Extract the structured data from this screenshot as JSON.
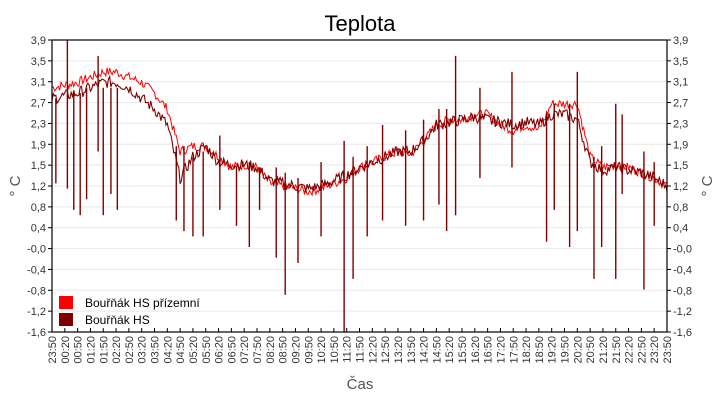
{
  "chart_data": {
    "type": "line",
    "title": "Teplota",
    "xlabel": "Čas",
    "ylabel": "° C",
    "ylabel_right": "° C",
    "ylim": [
      -1.6,
      3.9
    ],
    "y_ticks": [
      "3,9",
      "3,5",
      "3,1",
      "2,7",
      "2,3",
      "1,9",
      "1,5",
      "1,2",
      "0,8",
      "0,4",
      "-0,0",
      "-0,4",
      "-0,8",
      "-1,2",
      "-1,6"
    ],
    "y_tick_values": [
      3.9,
      3.5,
      3.1,
      2.7,
      2.3,
      1.9,
      1.5,
      1.2,
      0.8,
      0.4,
      0.0,
      -0.4,
      -0.8,
      -1.2,
      -1.6
    ],
    "grid": true,
    "legend_position": "lower-left inside",
    "x": [
      "23:50",
      "00:20",
      "00:50",
      "01:20",
      "01:50",
      "02:20",
      "02:50",
      "03:20",
      "03:50",
      "04:20",
      "04:50",
      "05:20",
      "05:50",
      "06:20",
      "06:50",
      "07:20",
      "07:50",
      "08:20",
      "08:50",
      "09:20",
      "09:50",
      "10:20",
      "10:50",
      "11:20",
      "11:50",
      "12:20",
      "12:50",
      "13:20",
      "13:50",
      "14:20",
      "14:50",
      "15:20",
      "15:50",
      "16:20",
      "16:50",
      "17:20",
      "17:50",
      "18:20",
      "18:50",
      "19:20",
      "19:50",
      "20:20",
      "20:50",
      "21:20",
      "21:50",
      "22:20",
      "22:50",
      "23:20",
      "23:50"
    ],
    "series": [
      {
        "name": "Bouřňák HS přízemní",
        "color": "#ff0000",
        "values": [
          3.0,
          3.05,
          3.1,
          3.2,
          3.3,
          3.3,
          3.2,
          3.1,
          2.9,
          2.6,
          1.8,
          1.9,
          1.9,
          1.7,
          1.5,
          1.55,
          1.5,
          1.2,
          1.15,
          1.1,
          1.05,
          1.1,
          1.2,
          1.3,
          1.5,
          1.6,
          1.7,
          1.8,
          1.75,
          2.0,
          2.3,
          2.4,
          2.4,
          2.5,
          2.5,
          2.3,
          2.2,
          2.3,
          2.2,
          2.7,
          2.7,
          2.7,
          1.7,
          1.5,
          1.55,
          1.5,
          1.4,
          1.3,
          1.15
        ]
      },
      {
        "name": "Bouřňák HS",
        "color": "#800000",
        "values": [
          2.8,
          2.85,
          2.9,
          3.0,
          3.1,
          3.1,
          3.0,
          2.8,
          2.6,
          2.3,
          1.3,
          1.7,
          1.9,
          1.6,
          1.55,
          1.55,
          1.5,
          1.25,
          1.2,
          1.15,
          1.1,
          1.15,
          1.25,
          1.35,
          1.5,
          1.6,
          1.7,
          1.8,
          1.8,
          2.0,
          2.3,
          2.35,
          2.4,
          2.45,
          2.4,
          2.35,
          2.3,
          2.35,
          2.3,
          2.5,
          2.5,
          2.4,
          1.6,
          1.45,
          1.5,
          1.45,
          1.4,
          1.3,
          1.15
        ]
      }
    ],
    "spikes": [
      {
        "series": 1,
        "x_index": 1.2,
        "low": 1.1,
        "high": 3.9
      },
      {
        "series": 1,
        "x_index": 0.3,
        "low": 1.2,
        "high": 2.8
      },
      {
        "series": 1,
        "x_index": 1.7,
        "low": 0.7,
        "high": 2.9
      },
      {
        "series": 1,
        "x_index": 2.2,
        "low": 0.6,
        "high": 2.9
      },
      {
        "series": 1,
        "x_index": 2.7,
        "low": 0.9,
        "high": 3.0
      },
      {
        "series": 1,
        "x_index": 3.6,
        "low": 1.8,
        "high": 3.6
      },
      {
        "series": 1,
        "x_index": 4.0,
        "low": 0.6,
        "high": 3.0
      },
      {
        "series": 1,
        "x_index": 4.6,
        "low": 1.0,
        "high": 3.0
      },
      {
        "series": 1,
        "x_index": 5.1,
        "low": 0.7,
        "high": 3.0
      },
      {
        "series": 1,
        "x_index": 9.7,
        "low": 0.5,
        "high": 1.9
      },
      {
        "series": 1,
        "x_index": 10.3,
        "low": 0.3,
        "high": 1.9
      },
      {
        "series": 1,
        "x_index": 11.0,
        "low": 0.2,
        "high": 1.7
      },
      {
        "series": 1,
        "x_index": 11.8,
        "low": 0.2,
        "high": 1.8
      },
      {
        "series": 1,
        "x_index": 13.1,
        "low": 0.7,
        "high": 2.1
      },
      {
        "series": 1,
        "x_index": 14.4,
        "low": 0.4,
        "high": 1.5
      },
      {
        "series": 1,
        "x_index": 15.4,
        "low": 0.0,
        "high": 1.6
      },
      {
        "series": 1,
        "x_index": 16.2,
        "low": 0.7,
        "high": 1.5
      },
      {
        "series": 1,
        "x_index": 17.5,
        "low": -0.2,
        "high": 1.5
      },
      {
        "series": 1,
        "x_index": 18.2,
        "low": -0.9,
        "high": 1.4
      },
      {
        "series": 1,
        "x_index": 19.2,
        "low": -0.3,
        "high": 1.3
      },
      {
        "series": 1,
        "x_index": 21.0,
        "low": 0.2,
        "high": 1.6
      },
      {
        "series": 1,
        "x_index": 22.8,
        "low": -1.6,
        "high": 2.0
      },
      {
        "series": 1,
        "x_index": 23.5,
        "low": -0.6,
        "high": 1.7
      },
      {
        "series": 1,
        "x_index": 24.6,
        "low": 0.2,
        "high": 1.9
      },
      {
        "series": 1,
        "x_index": 25.8,
        "low": 0.5,
        "high": 2.3
      },
      {
        "series": 1,
        "x_index": 27.6,
        "low": 0.4,
        "high": 2.2
      },
      {
        "series": 1,
        "x_index": 29.0,
        "low": 0.5,
        "high": 2.4
      },
      {
        "series": 1,
        "x_index": 30.2,
        "low": 0.8,
        "high": 2.6
      },
      {
        "series": 1,
        "x_index": 30.8,
        "low": 0.3,
        "high": 2.6
      },
      {
        "series": 1,
        "x_index": 31.5,
        "low": 0.6,
        "high": 3.6
      },
      {
        "series": 1,
        "x_index": 33.4,
        "low": 1.3,
        "high": 3.0
      },
      {
        "series": 1,
        "x_index": 35.9,
        "low": 1.5,
        "high": 3.3
      },
      {
        "series": 1,
        "x_index": 38.6,
        "low": 0.1,
        "high": 2.5
      },
      {
        "series": 1,
        "x_index": 39.2,
        "low": 0.7,
        "high": 2.7
      },
      {
        "series": 1,
        "x_index": 40.4,
        "low": 0.0,
        "high": 2.7
      },
      {
        "series": 1,
        "x_index": 41.0,
        "low": 0.3,
        "high": 3.3
      },
      {
        "series": 1,
        "x_index": 42.3,
        "low": -0.6,
        "high": 1.7
      },
      {
        "series": 1,
        "x_index": 42.9,
        "low": 0.0,
        "high": 1.9
      },
      {
        "series": 1,
        "x_index": 44.0,
        "low": -0.6,
        "high": 2.7
      },
      {
        "series": 1,
        "x_index": 44.5,
        "low": 1.0,
        "high": 2.5
      },
      {
        "series": 1,
        "x_index": 46.2,
        "low": -0.8,
        "high": 1.8
      },
      {
        "series": 1,
        "x_index": 47.0,
        "low": 0.4,
        "high": 1.6
      }
    ]
  }
}
